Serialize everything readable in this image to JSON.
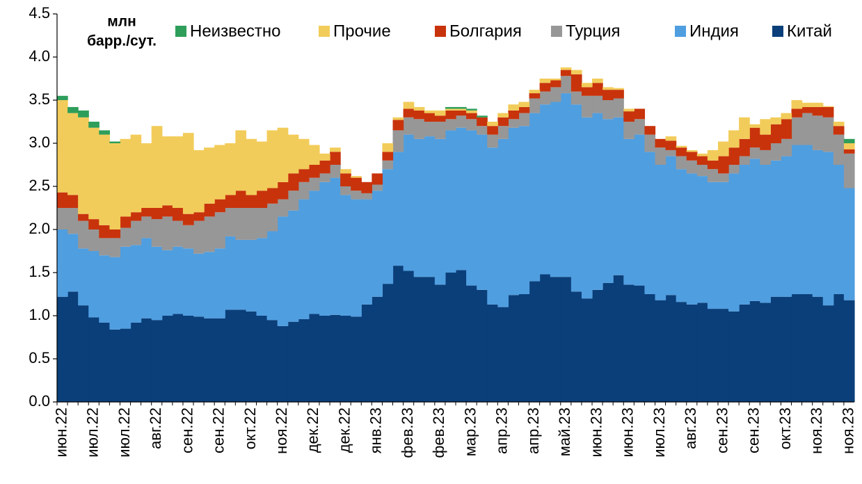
{
  "chart_data": {
    "type": "stacked_step_area",
    "y_axis_label": [
      "млн",
      "барр./сут."
    ],
    "categories": [
      "июн.22",
      null,
      null,
      "июл.22",
      null,
      null,
      "июл.22",
      null,
      null,
      "авг.22",
      null,
      null,
      "сен.22",
      null,
      null,
      "сен.22",
      null,
      null,
      "окт.22",
      null,
      null,
      "ноя.22",
      null,
      null,
      "дек.22",
      null,
      null,
      "дек.22",
      null,
      null,
      "янв.23",
      null,
      null,
      "фев.23",
      null,
      null,
      "фев.23",
      null,
      null,
      "мар.23",
      null,
      null,
      "апр.23",
      null,
      null,
      "апр.23",
      null,
      null,
      "май.23",
      null,
      null,
      "июн.23",
      null,
      null,
      "июн.23",
      null,
      null,
      "июл.23",
      null,
      null,
      "авг.23",
      null,
      null,
      "сен.23",
      null,
      null,
      "сен.23",
      null,
      null,
      "окт.23",
      null,
      null,
      "ноя.23",
      null,
      null,
      "ноя.23"
    ],
    "series": [
      {
        "name": "Китай",
        "color": "#0b3f7a",
        "values": [
          1.22,
          1.28,
          1.12,
          0.98,
          0.92,
          0.84,
          0.85,
          0.92,
          0.97,
          0.95,
          1.0,
          1.02,
          1.0,
          0.99,
          0.97,
          0.97,
          1.07,
          1.07,
          1.05,
          1.0,
          0.95,
          0.88,
          0.93,
          0.96,
          1.02,
          1.0,
          1.01,
          1.0,
          0.99,
          1.13,
          1.22,
          1.37,
          1.58,
          1.52,
          1.45,
          1.45,
          1.36,
          1.5,
          1.53,
          1.35,
          1.3,
          1.13,
          1.1,
          1.24,
          1.25,
          1.4,
          1.48,
          1.45,
          1.45,
          1.28,
          1.2,
          1.3,
          1.38,
          1.47,
          1.36,
          1.35,
          1.25,
          1.18,
          1.24,
          1.16,
          1.13,
          1.15,
          1.08,
          1.08,
          1.05,
          1.13,
          1.17,
          1.15,
          1.22,
          1.22,
          1.25,
          1.25,
          1.22,
          1.12,
          1.25,
          1.18
        ]
      },
      {
        "name": "Индия",
        "color": "#4f9ee0",
        "values": [
          0.78,
          0.67,
          0.66,
          0.77,
          0.78,
          0.84,
          0.95,
          0.9,
          0.93,
          0.85,
          0.76,
          0.78,
          0.78,
          0.73,
          0.77,
          0.81,
          0.85,
          0.81,
          0.83,
          0.9,
          1.03,
          1.27,
          1.29,
          1.39,
          1.43,
          1.55,
          1.59,
          1.4,
          1.36,
          1.22,
          1.23,
          1.33,
          1.32,
          1.58,
          1.6,
          1.63,
          1.69,
          1.65,
          1.65,
          1.8,
          1.8,
          1.82,
          1.95,
          1.94,
          1.95,
          1.95,
          1.97,
          2.03,
          2.13,
          2.17,
          2.1,
          2.05,
          1.9,
          1.83,
          1.69,
          1.75,
          1.65,
          1.57,
          1.61,
          1.54,
          1.52,
          1.47,
          1.47,
          1.47,
          1.6,
          1.62,
          1.65,
          1.6,
          1.58,
          1.63,
          1.73,
          1.73,
          1.7,
          1.78,
          1.5,
          1.3
        ]
      },
      {
        "name": "Турция",
        "color": "#979797",
        "values": [
          0.25,
          0.3,
          0.32,
          0.25,
          0.2,
          0.22,
          0.22,
          0.28,
          0.25,
          0.32,
          0.39,
          0.3,
          0.27,
          0.38,
          0.41,
          0.42,
          0.33,
          0.37,
          0.37,
          0.35,
          0.32,
          0.2,
          0.23,
          0.2,
          0.15,
          0.1,
          0.15,
          0.1,
          0.1,
          0.07,
          0.07,
          0.1,
          0.25,
          0.2,
          0.23,
          0.17,
          0.2,
          0.13,
          0.14,
          0.13,
          0.1,
          0.15,
          0.15,
          0.1,
          0.15,
          0.17,
          0.15,
          0.17,
          0.2,
          0.15,
          0.25,
          0.2,
          0.22,
          0.22,
          0.2,
          0.18,
          0.2,
          0.2,
          0.07,
          0.15,
          0.15,
          0.13,
          0.15,
          0.1,
          0.1,
          0.1,
          0.13,
          0.17,
          0.2,
          0.2,
          0.32,
          0.37,
          0.4,
          0.4,
          0.35,
          0.4
        ]
      },
      {
        "name": "Болгария",
        "color": "#c8330c",
        "values": [
          0.18,
          0.15,
          0.08,
          0.12,
          0.15,
          0.1,
          0.13,
          0.1,
          0.1,
          0.13,
          0.13,
          0.15,
          0.13,
          0.1,
          0.15,
          0.15,
          0.15,
          0.2,
          0.15,
          0.2,
          0.18,
          0.2,
          0.2,
          0.15,
          0.15,
          0.15,
          0.15,
          0.15,
          0.15,
          0.13,
          0.13,
          0.1,
          0.12,
          0.1,
          0.1,
          0.1,
          0.07,
          0.1,
          0.06,
          0.07,
          0.1,
          0.1,
          0.1,
          0.1,
          0.07,
          0.06,
          0.1,
          0.08,
          0.07,
          0.2,
          0.1,
          0.15,
          0.12,
          0.1,
          0.12,
          0.12,
          0.1,
          0.1,
          0.11,
          0.1,
          0.1,
          0.1,
          0.1,
          0.2,
          0.2,
          0.2,
          0.23,
          0.18,
          0.22,
          0.23,
          0.1,
          0.07,
          0.1,
          0.12,
          0.1,
          0.05
        ]
      },
      {
        "name": "Прочие",
        "color": "#f2cc5a",
        "values": [
          1.07,
          0.95,
          1.12,
          1.06,
          1.05,
          1.0,
          0.9,
          0.9,
          0.75,
          0.95,
          0.8,
          0.83,
          0.94,
          0.72,
          0.65,
          0.63,
          0.6,
          0.7,
          0.65,
          0.57,
          0.67,
          0.63,
          0.45,
          0.35,
          0.23,
          0.08,
          0.05,
          0.05,
          0.02,
          0,
          0,
          0.1,
          0.03,
          0.08,
          0.04,
          0.03,
          0.06,
          0.02,
          0.02,
          0.03,
          0,
          0.05,
          0.05,
          0.07,
          0.06,
          0.04,
          0.05,
          0.02,
          0.03,
          0.05,
          0.05,
          0.05,
          0.03,
          0.02,
          0.03,
          0,
          0,
          0,
          0.05,
          0.02,
          0.02,
          0.03,
          0.12,
          0.17,
          0.2,
          0.25,
          0.04,
          0.18,
          0.08,
          0.07,
          0.1,
          0.05,
          0.05,
          0.01,
          0.05,
          0.07
        ]
      },
      {
        "name": "Неизвестно",
        "color": "#2e9e5a",
        "values": [
          0.05,
          0.07,
          0.08,
          0.07,
          0.05,
          0.02,
          0,
          0,
          0,
          0,
          0,
          0,
          0,
          0,
          0,
          0,
          0,
          0,
          0,
          0,
          0,
          0,
          0,
          0,
          0,
          0,
          0,
          0,
          0,
          0,
          0,
          0,
          0,
          0,
          0,
          0,
          0,
          0.02,
          0.02,
          0.02,
          0.02,
          0,
          0,
          0,
          0,
          0,
          0,
          0,
          0,
          0,
          0,
          0,
          0,
          0,
          0,
          0,
          0,
          0,
          0,
          0,
          0,
          0,
          0,
          0,
          0,
          0,
          0,
          0,
          0,
          0,
          0,
          0,
          0,
          0,
          0,
          0.05
        ]
      }
    ],
    "ylim": [
      0,
      4.5
    ],
    "yticks": [
      {
        "value": 0,
        "label": "0.0"
      },
      0.5,
      {
        "value": 1,
        "label": "1.0"
      },
      1.5,
      {
        "value": 2,
        "label": "2.0"
      },
      2.5,
      {
        "value": 3,
        "label": "3.0"
      },
      3.5,
      {
        "value": 4,
        "label": "4.0"
      },
      4.5
    ],
    "grid": false,
    "legend": "top"
  }
}
